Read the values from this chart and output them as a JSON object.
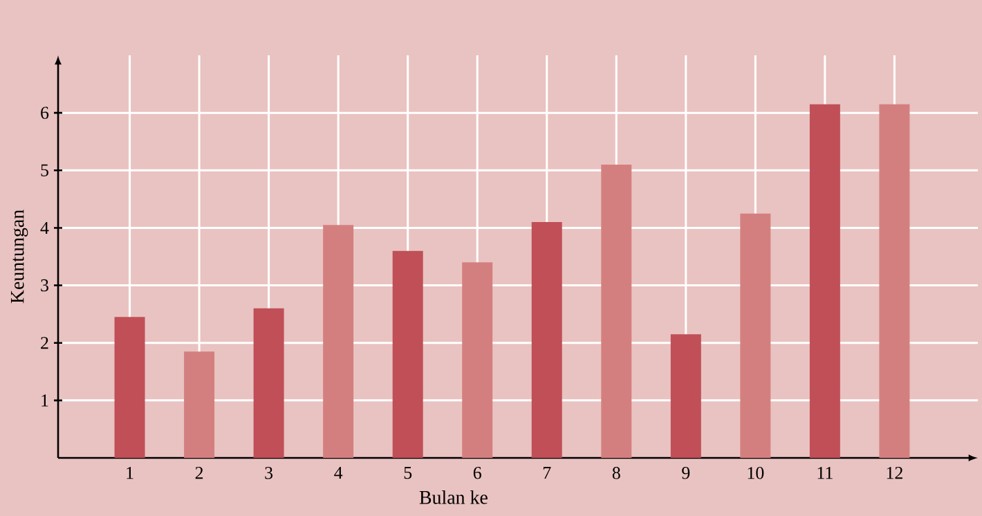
{
  "chart_data": {
    "type": "bar",
    "xlabel": "Bulan ke",
    "ylabel": "Keuntungan",
    "categories": [
      "1",
      "2",
      "3",
      "4",
      "5",
      "6",
      "7",
      "8",
      "9",
      "10",
      "11",
      "12"
    ],
    "values": [
      2.45,
      1.85,
      2.6,
      4.05,
      3.6,
      3.4,
      4.1,
      5.1,
      2.15,
      4.25,
      6.15,
      6.15
    ],
    "colors": [
      "#c04f58",
      "#d47f7f",
      "#c04f58",
      "#d47f7f",
      "#c04f58",
      "#d47f7f",
      "#c04f58",
      "#d47f7f",
      "#c04f58",
      "#d47f7f",
      "#c04f58",
      "#d47f7f"
    ],
    "ylim": [
      0,
      7
    ],
    "yticks": [
      1,
      2,
      3,
      4,
      5,
      6
    ],
    "grid": true
  }
}
